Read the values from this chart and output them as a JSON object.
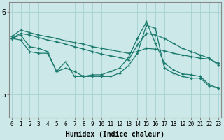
{
  "x": [
    0,
    1,
    2,
    3,
    4,
    5,
    6,
    7,
    8,
    9,
    10,
    11,
    12,
    13,
    14,
    15,
    16,
    17,
    18,
    19,
    20,
    21,
    22,
    23
  ],
  "line_smooth1": [
    5.7,
    5.78,
    5.75,
    5.72,
    5.7,
    5.68,
    5.65,
    5.63,
    5.61,
    5.58,
    5.56,
    5.54,
    5.52,
    5.5,
    5.52,
    5.56,
    5.55,
    5.53,
    5.5,
    5.48,
    5.46,
    5.44,
    5.43,
    5.38
  ],
  "line_smooth2": [
    5.68,
    5.74,
    5.72,
    5.69,
    5.66,
    5.64,
    5.61,
    5.58,
    5.55,
    5.52,
    5.49,
    5.47,
    5.45,
    5.42,
    5.6,
    5.74,
    5.72,
    5.68,
    5.62,
    5.56,
    5.52,
    5.48,
    5.44,
    5.36
  ],
  "line_volatile": [
    5.68,
    5.72,
    5.58,
    5.56,
    5.52,
    5.28,
    5.4,
    5.22,
    5.22,
    5.24,
    5.24,
    5.28,
    5.32,
    5.45,
    5.68,
    5.88,
    5.62,
    5.38,
    5.3,
    5.25,
    5.24,
    5.22,
    5.12,
    5.08
  ],
  "line_volatile2": [
    5.68,
    5.66,
    5.52,
    5.5,
    5.5,
    5.28,
    5.32,
    5.28,
    5.22,
    5.22,
    5.22,
    5.22,
    5.26,
    5.35,
    5.5,
    5.84,
    5.8,
    5.32,
    5.26,
    5.22,
    5.2,
    5.2,
    5.1,
    5.08
  ],
  "bg_color": "#cce8e8",
  "grid_color": "#aad4d4",
  "line_color": "#1a7a6e",
  "xlabel": "Humidex (Indice chaleur)",
  "yticks": [
    5,
    6
  ],
  "xticks": [
    0,
    1,
    2,
    3,
    4,
    5,
    6,
    7,
    8,
    9,
    10,
    11,
    12,
    13,
    14,
    15,
    16,
    17,
    18,
    19,
    20,
    21,
    22,
    23
  ],
  "ylim": [
    4.72,
    6.12
  ],
  "xlim": [
    -0.3,
    23.3
  ]
}
